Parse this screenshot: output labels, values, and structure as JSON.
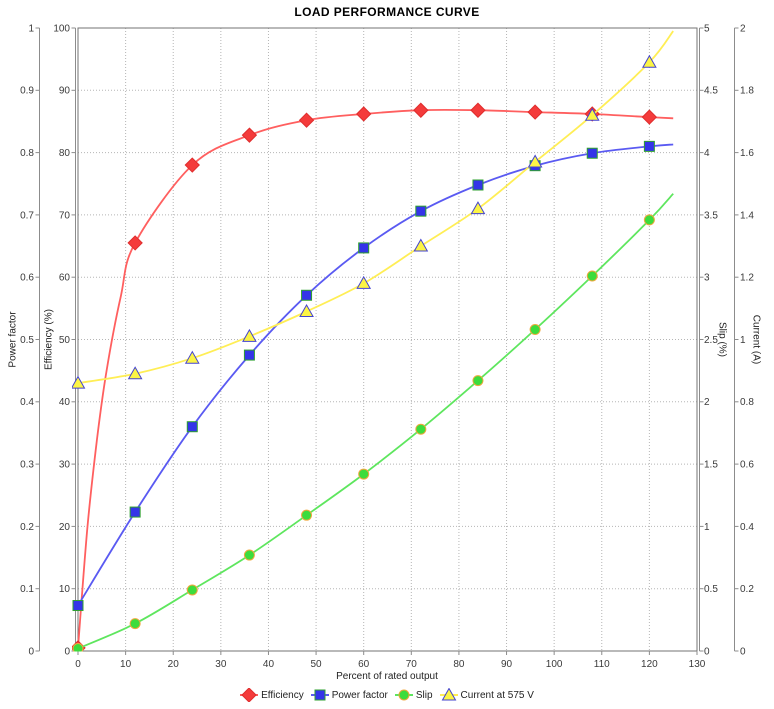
{
  "chart": {
    "title": "LOAD PERFORMANCE CURVE"
  },
  "chart_data": {
    "type": "line",
    "title": "LOAD PERFORMANCE CURVE",
    "xlabel": "Percent of rated output",
    "grid": true,
    "legend_position": "bottom",
    "x_axis": {
      "label": "Percent of rated output",
      "min": 0,
      "max": 130,
      "step": 10
    },
    "axes": [
      {
        "id": "power_factor",
        "label": "Power factor",
        "min": 0,
        "max": 1,
        "step": 0.1,
        "side": "left"
      },
      {
        "id": "efficiency",
        "label": "Efficiency (%)",
        "min": 0,
        "max": 100,
        "step": 10,
        "side": "left"
      },
      {
        "id": "slip",
        "label": "Slip (%)",
        "min": 0,
        "max": 5,
        "step": 0.5,
        "side": "right"
      },
      {
        "id": "current",
        "label": "Current (A)",
        "min": 0,
        "max": 2,
        "step": 0.2,
        "side": "right"
      }
    ],
    "x": [
      0,
      12,
      24,
      36,
      48,
      60,
      72,
      84,
      96,
      108,
      120
    ],
    "series": [
      {
        "name": "Efficiency",
        "axis": "efficiency",
        "marker": "diamond",
        "line_color": "#ff5f5f",
        "fill_color": "#f43b3b",
        "outline_color": "#df2d2d",
        "values": [
          0.5,
          65.5,
          78,
          82.8,
          85.2,
          86.2,
          86.8,
          86.8,
          86.5,
          86.2,
          85.7
        ],
        "curve_helpers": [
          [
            2,
            20
          ],
          [
            4,
            34
          ],
          [
            6,
            45
          ],
          [
            9,
            57
          ]
        ],
        "curve_end": [
          125,
          85.5
        ]
      },
      {
        "name": "Power factor",
        "axis": "power_factor",
        "marker": "square",
        "line_color": "#5a5af2",
        "fill_color": "#3434e8",
        "outline_color": "#2fa12f",
        "values": [
          0.073,
          0.223,
          0.36,
          0.475,
          0.571,
          0.647,
          0.706,
          0.748,
          0.779,
          0.799,
          0.81
        ],
        "curve_helpers": [],
        "curve_end": [
          125,
          0.813
        ]
      },
      {
        "name": "Slip",
        "axis": "slip",
        "marker": "circle",
        "line_color": "#5ee65e",
        "fill_color": "#3cdc3c",
        "outline_color": "#f0a73c",
        "values": [
          0.02,
          0.22,
          0.49,
          0.77,
          1.09,
          1.42,
          1.78,
          2.17,
          2.58,
          3.01,
          3.46
        ],
        "curve_helpers": [],
        "curve_end": [
          125,
          3.67
        ]
      },
      {
        "name": "Current at 575 V",
        "axis": "current",
        "marker": "triangle",
        "line_color": "#ffee55",
        "fill_color": "#fcf545",
        "outline_color": "#4343cf",
        "values": [
          0.86,
          0.89,
          0.94,
          1.01,
          1.09,
          1.18,
          1.3,
          1.42,
          1.57,
          1.72,
          1.89
        ],
        "curve_helpers": [],
        "curve_end": [
          125,
          1.99
        ]
      }
    ]
  },
  "colors": {
    "grid": "#b5b5b5",
    "plot_border": "#737373",
    "axis_line": "#8c8c8c",
    "tick_text": "#3a3a3a",
    "background": "#ffffff"
  }
}
